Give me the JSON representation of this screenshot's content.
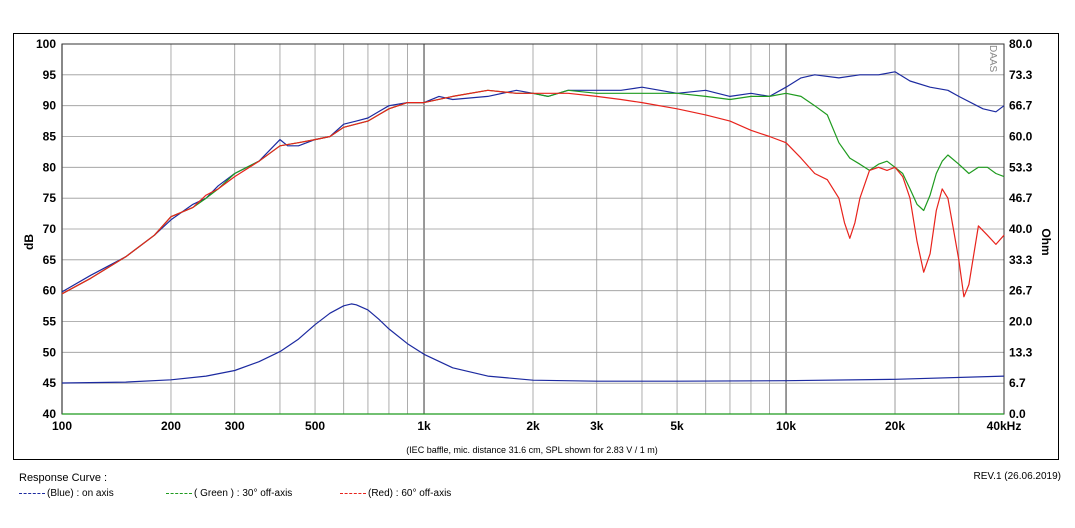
{
  "colors": {
    "blue": "#1c2aa0",
    "green": "#1f9b1f",
    "red": "#e8231c",
    "impedance": "#1c2aa0",
    "baseline": "#1f9b1f"
  },
  "chart_data": {
    "type": "line",
    "xscale": "log",
    "xlim": [
      100,
      40000
    ],
    "ylim": [
      40,
      100
    ],
    "y2lim": [
      0,
      80
    ],
    "xticks": [
      100,
      200,
      300,
      500,
      1000,
      2000,
      3000,
      5000,
      10000,
      20000,
      40000
    ],
    "xtick_labels": [
      "100",
      "200",
      "300",
      "500",
      "1k",
      "2k",
      "3k",
      "5k",
      "10k",
      "20k",
      "40kHz"
    ],
    "yticks": [
      40,
      45,
      50,
      55,
      60,
      65,
      70,
      75,
      80,
      85,
      90,
      95,
      100
    ],
    "ytick_labels": [
      "40",
      "45",
      "50",
      "55",
      "60",
      "65",
      "70",
      "75",
      "80",
      "85",
      "90",
      "95",
      "100"
    ],
    "y2tick_labels": [
      "0.0",
      "6.7",
      "13.3",
      "20.0",
      "26.7",
      "33.3",
      "40.0",
      "46.7",
      "53.3",
      "60.0",
      "66.7",
      "73.3",
      "80.0"
    ],
    "ylabel": "dB",
    "y2label": "Ohm",
    "note": "(IEC baffle, mic. distance 31.6 cm, SPL shown for 2.83 V / 1 m)",
    "watermark": "DAAS",
    "grid": true,
    "series": [
      {
        "name": "on axis",
        "color": "blue",
        "axis": "left",
        "x": [
          100,
          120,
          150,
          180,
          200,
          230,
          250,
          270,
          300,
          350,
          400,
          420,
          450,
          500,
          550,
          600,
          650,
          700,
          800,
          900,
          1000,
          1100,
          1200,
          1500,
          1800,
          2000,
          2200,
          2500,
          3000,
          3500,
          4000,
          5000,
          6000,
          7000,
          8000,
          9000,
          10000,
          11000,
          12000,
          14000,
          16000,
          18000,
          20000,
          22000,
          25000,
          28000,
          30000,
          35000,
          38000,
          40000
        ],
        "y": [
          59.8,
          62.5,
          65.5,
          69,
          71.5,
          74,
          75,
          77,
          79,
          81,
          84.5,
          83.5,
          83.5,
          84.5,
          85,
          87,
          87.5,
          88,
          90,
          90.5,
          90.5,
          91.5,
          91,
          91.5,
          92.5,
          92,
          91.5,
          92.5,
          92.5,
          92.5,
          93,
          92,
          92.5,
          91.5,
          92,
          91.5,
          93,
          94.5,
          95,
          94.5,
          95,
          95,
          95.5,
          94,
          93,
          92.5,
          91.5,
          89.5,
          89,
          90
        ]
      },
      {
        "name": "30° off-axis",
        "color": "green",
        "axis": "left",
        "x": [
          100,
          120,
          150,
          180,
          200,
          230,
          250,
          270,
          300,
          350,
          400,
          450,
          500,
          550,
          600,
          700,
          800,
          900,
          1000,
          1200,
          1500,
          1800,
          2000,
          2200,
          2500,
          3000,
          4000,
          5000,
          6000,
          7000,
          8000,
          9000,
          10000,
          11000,
          12000,
          13000,
          14000,
          15000,
          16000,
          17000,
          18000,
          19000,
          20000,
          21000,
          22000,
          23000,
          24000,
          25000,
          26000,
          27000,
          28000,
          30000,
          32000,
          34000,
          36000,
          38000,
          40000
        ],
        "y": [
          59.5,
          62,
          65.5,
          69,
          72,
          73.5,
          75,
          76.5,
          79,
          81,
          83.5,
          84,
          84.5,
          85,
          86.5,
          87.5,
          89.5,
          90.5,
          90.5,
          91.5,
          92.5,
          92,
          92,
          91.5,
          92.5,
          92,
          92,
          92,
          91.5,
          91,
          91.5,
          91.5,
          92,
          91.5,
          90,
          88.5,
          84,
          81.5,
          80.5,
          79.5,
          80.5,
          81,
          80,
          79,
          76.5,
          74,
          73,
          75.5,
          79,
          81,
          82,
          80.5,
          79,
          80,
          80,
          79,
          78.5
        ]
      },
      {
        "name": "60° off-axis",
        "color": "red",
        "axis": "left",
        "x": [
          100,
          120,
          150,
          180,
          200,
          230,
          250,
          270,
          300,
          350,
          400,
          450,
          500,
          550,
          600,
          700,
          800,
          900,
          1000,
          1200,
          1500,
          1800,
          2000,
          2200,
          2500,
          3000,
          3500,
          4000,
          5000,
          6000,
          7000,
          8000,
          9000,
          10000,
          11000,
          12000,
          13000,
          14000,
          14500,
          15000,
          15500,
          16000,
          17000,
          18000,
          19000,
          20000,
          21000,
          22000,
          23000,
          24000,
          25000,
          26000,
          27000,
          28000,
          29000,
          30000,
          31000,
          32000,
          34000,
          36000,
          38000,
          40000
        ],
        "y": [
          59.5,
          62,
          65.5,
          69,
          72,
          73.5,
          75.5,
          76.5,
          78.5,
          81,
          83.5,
          84,
          84.5,
          85,
          86.5,
          87.5,
          89.5,
          90.5,
          90.5,
          91.5,
          92.5,
          92,
          92,
          92,
          92,
          91.5,
          91,
          90.5,
          89.5,
          88.5,
          87.5,
          86,
          85,
          84,
          81.5,
          79,
          78,
          75,
          71,
          68.5,
          71,
          75,
          79.5,
          80,
          79.5,
          80,
          78.5,
          75,
          68,
          63,
          66,
          73,
          76.5,
          75,
          70,
          65,
          59,
          61,
          70.5,
          69,
          67.5,
          69
        ]
      },
      {
        "name": "Impedance",
        "color": "impedance",
        "axis": "right",
        "x": [
          100,
          150,
          200,
          250,
          300,
          350,
          400,
          450,
          500,
          550,
          600,
          630,
          650,
          700,
          750,
          800,
          900,
          1000,
          1200,
          1500,
          2000,
          3000,
          5000,
          10000,
          20000,
          40000
        ],
        "y": [
          6.7,
          6.9,
          7.4,
          8.2,
          9.4,
          11.3,
          13.5,
          16.2,
          19.3,
          21.8,
          23.4,
          23.8,
          23.6,
          22.5,
          20.5,
          18.4,
          15.2,
          12.9,
          10,
          8.2,
          7.3,
          7.1,
          7.1,
          7.2,
          7.5,
          8.2
        ]
      },
      {
        "name": "baseline",
        "color": "baseline",
        "axis": "left",
        "x": [
          100,
          40000
        ],
        "y": [
          40,
          40
        ]
      }
    ]
  },
  "legend": {
    "title": "Response Curve :",
    "items": [
      {
        "label": "(Blue)  : on axis",
        "color": "blue"
      },
      {
        "label": "( Green ) : 30° off-axis",
        "color": "green"
      },
      {
        "label": "(Red) : 60° off-axis",
        "color": "red"
      }
    ]
  },
  "revision": "REV.1 (26.06.2019)"
}
